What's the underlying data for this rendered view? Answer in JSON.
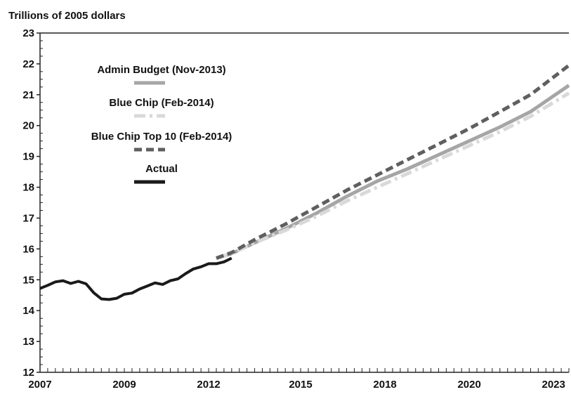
{
  "chart_data": {
    "type": "line",
    "ylabel": "Trillions of 2005 dollars",
    "ylim": [
      12,
      23
    ],
    "xlim": [
      2007,
      2024.25
    ],
    "yticks": [
      12,
      13,
      14,
      15,
      16,
      17,
      18,
      19,
      20,
      21,
      22,
      23
    ],
    "xtick_labels": [
      "2007",
      "2009",
      "2012",
      "2015",
      "2018",
      "2020",
      "2023"
    ],
    "xtick_positions": [
      2007,
      2009.75,
      2012.5,
      2015.5,
      2018.25,
      2021,
      2023.75
    ],
    "grid": false,
    "legend_position": "top-left",
    "series": [
      {
        "name": "Admin Budget (Nov-2013)",
        "color": "#a6a6a6",
        "style": "solid",
        "points": [
          [
            2012.75,
            15.7
          ],
          [
            2013.25,
            15.85
          ],
          [
            2014,
            16.2
          ],
          [
            2015,
            16.65
          ],
          [
            2016,
            17.15
          ],
          [
            2017,
            17.7
          ],
          [
            2018,
            18.2
          ],
          [
            2019,
            18.6
          ],
          [
            2020,
            19.05
          ],
          [
            2021,
            19.5
          ],
          [
            2022,
            19.95
          ],
          [
            2023,
            20.45
          ],
          [
            2024.25,
            21.3
          ]
        ]
      },
      {
        "name": "Blue Chip (Feb-2014)",
        "color": "#d9d9d9",
        "style": "dashdot",
        "points": [
          [
            2012.75,
            15.7
          ],
          [
            2013.25,
            15.85
          ],
          [
            2014,
            16.2
          ],
          [
            2015,
            16.6
          ],
          [
            2016,
            17.05
          ],
          [
            2017,
            17.55
          ],
          [
            2018,
            18.0
          ],
          [
            2019,
            18.45
          ],
          [
            2020,
            18.9
          ],
          [
            2021,
            19.35
          ],
          [
            2022,
            19.8
          ],
          [
            2023,
            20.3
          ],
          [
            2024.25,
            21.05
          ]
        ]
      },
      {
        "name": "Blue Chip Top 10 (Feb-2014)",
        "color": "#5f5f5f",
        "style": "dashed",
        "points": [
          [
            2012.75,
            15.7
          ],
          [
            2013.25,
            15.88
          ],
          [
            2014,
            16.3
          ],
          [
            2015,
            16.8
          ],
          [
            2016,
            17.35
          ],
          [
            2017,
            17.9
          ],
          [
            2018,
            18.4
          ],
          [
            2019,
            18.9
          ],
          [
            2020,
            19.4
          ],
          [
            2021,
            19.9
          ],
          [
            2022,
            20.45
          ],
          [
            2023,
            21.0
          ],
          [
            2024.25,
            21.95
          ]
        ]
      },
      {
        "name": "Actual",
        "color": "#1a1a1a",
        "style": "solid",
        "points": [
          [
            2007,
            14.72
          ],
          [
            2007.25,
            14.82
          ],
          [
            2007.5,
            14.93
          ],
          [
            2007.75,
            14.97
          ],
          [
            2008,
            14.88
          ],
          [
            2008.25,
            14.95
          ],
          [
            2008.5,
            14.87
          ],
          [
            2008.75,
            14.58
          ],
          [
            2009,
            14.38
          ],
          [
            2009.25,
            14.36
          ],
          [
            2009.5,
            14.4
          ],
          [
            2009.75,
            14.53
          ],
          [
            2010,
            14.57
          ],
          [
            2010.25,
            14.7
          ],
          [
            2010.5,
            14.8
          ],
          [
            2010.75,
            14.9
          ],
          [
            2011,
            14.85
          ],
          [
            2011.25,
            14.97
          ],
          [
            2011.5,
            15.03
          ],
          [
            2011.75,
            15.2
          ],
          [
            2012,
            15.35
          ],
          [
            2012.25,
            15.42
          ],
          [
            2012.5,
            15.52
          ],
          [
            2012.75,
            15.52
          ],
          [
            2013,
            15.58
          ],
          [
            2013.25,
            15.7
          ]
        ]
      }
    ]
  }
}
